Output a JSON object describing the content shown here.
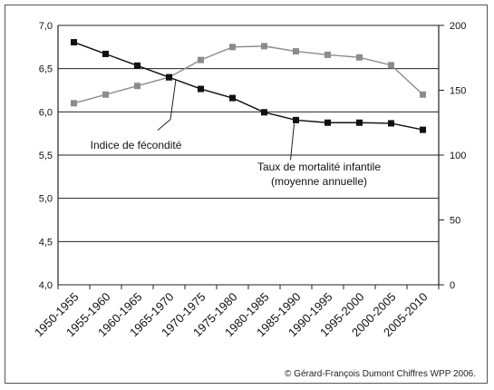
{
  "chart_data": {
    "type": "line",
    "categories": [
      "1950-1955",
      "1955-1960",
      "1960-1965",
      "1965-1970",
      "1970-1975",
      "1975-1980",
      "1980-1985",
      "1985-1990",
      "1990-1995",
      "1995-2000",
      "2000-2005",
      "2005-2010"
    ],
    "series": [
      {
        "name": "Indice de fécondité",
        "axis": "left",
        "color": "#8c8c8c",
        "values": [
          6.1,
          6.2,
          6.3,
          6.4,
          6.6,
          6.75,
          6.76,
          6.7,
          6.66,
          6.63,
          6.54,
          6.2
        ]
      },
      {
        "name": "Taux de mortalité infantile (moyenne annuelle)",
        "axis": "right",
        "color": "#111111",
        "values": [
          187,
          178,
          169,
          160,
          151,
          144,
          133,
          127,
          125,
          125,
          124.5,
          119.5
        ]
      }
    ],
    "y_left": {
      "min": 4.0,
      "max": 7.0,
      "ticks": [
        "4,0",
        "4,5",
        "5,0",
        "5,5",
        "6,0",
        "6,5",
        "7,0"
      ]
    },
    "y_right": {
      "min": 0,
      "max": 200,
      "ticks": [
        "0",
        "50",
        "100",
        "150",
        "200"
      ]
    },
    "annotations": [
      {
        "text": "Indice de fécondité",
        "series": 0
      },
      {
        "text": "Taux de mortalité infantile",
        "series": 1
      },
      {
        "text": "(moyenne annuelle)",
        "series": 1
      }
    ],
    "grid": true
  },
  "credit": "© Gérard-François Dumont  Chiffres WPP 2006."
}
